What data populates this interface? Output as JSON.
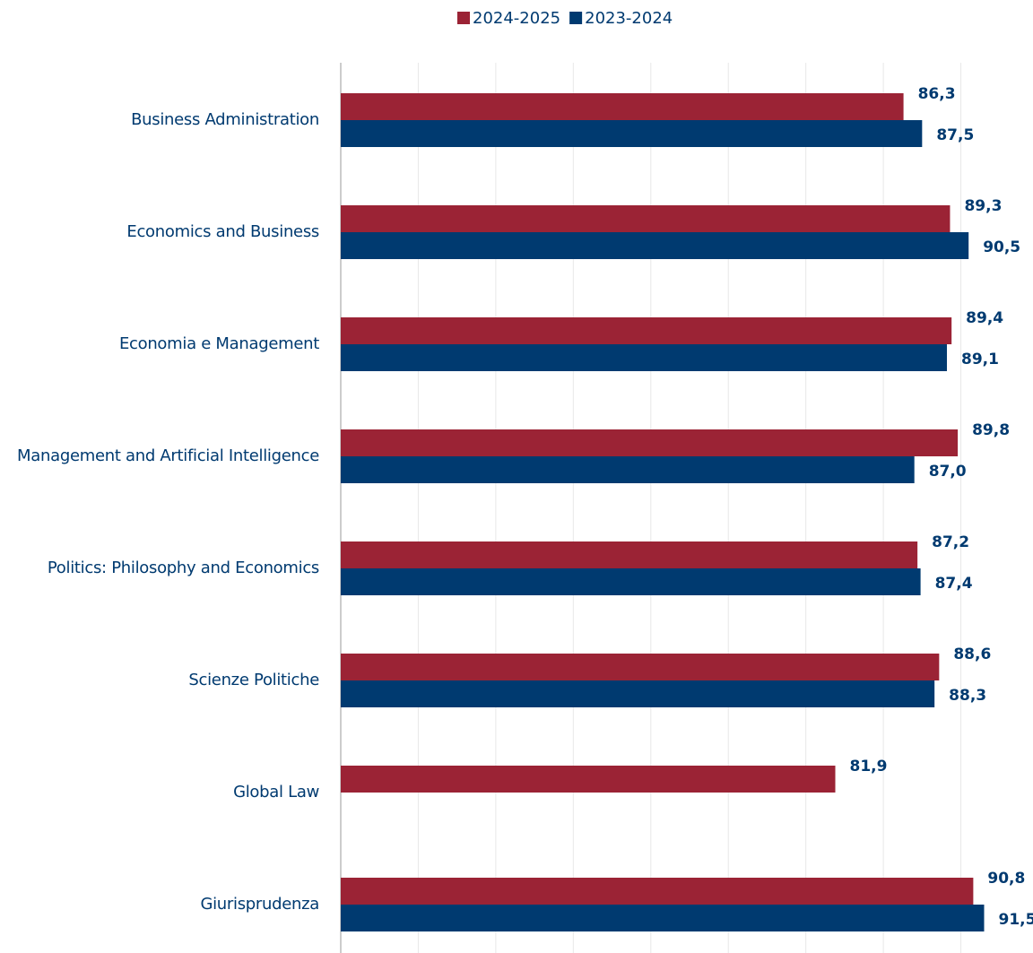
{
  "chart_data": {
    "type": "hbar",
    "categories": [
      "Business Administration",
      "Economics and Business",
      "Economia e Management",
      "Management and Artificial Intelligence",
      "Politics: Philosophy and Economics",
      "Scienze Politiche",
      "Global Law",
      "Giurisprudenza"
    ],
    "series": [
      {
        "name": "2024-2025",
        "color": "#9b2335",
        "values": [
          86.3,
          89.3,
          89.4,
          89.8,
          87.2,
          88.6,
          81.9,
          90.8
        ],
        "value_labels": [
          "86,3",
          "89,3",
          "89,4",
          "89,8",
          "87,2",
          "88,6",
          "81,9",
          "90,8"
        ]
      },
      {
        "name": "2023-2024",
        "color": "#003a70",
        "values": [
          87.5,
          90.5,
          89.1,
          87.0,
          87.4,
          88.3,
          null,
          91.5
        ],
        "value_labels": [
          "87,5",
          "90,5",
          "89,1",
          "87,0",
          "87,4",
          "88,3",
          null,
          "91,5"
        ]
      }
    ],
    "xlim": [
      50,
      95
    ],
    "xticks": [
      50,
      55,
      60,
      65,
      70,
      75,
      80,
      85,
      90
    ],
    "grid": true,
    "legend": "top"
  }
}
